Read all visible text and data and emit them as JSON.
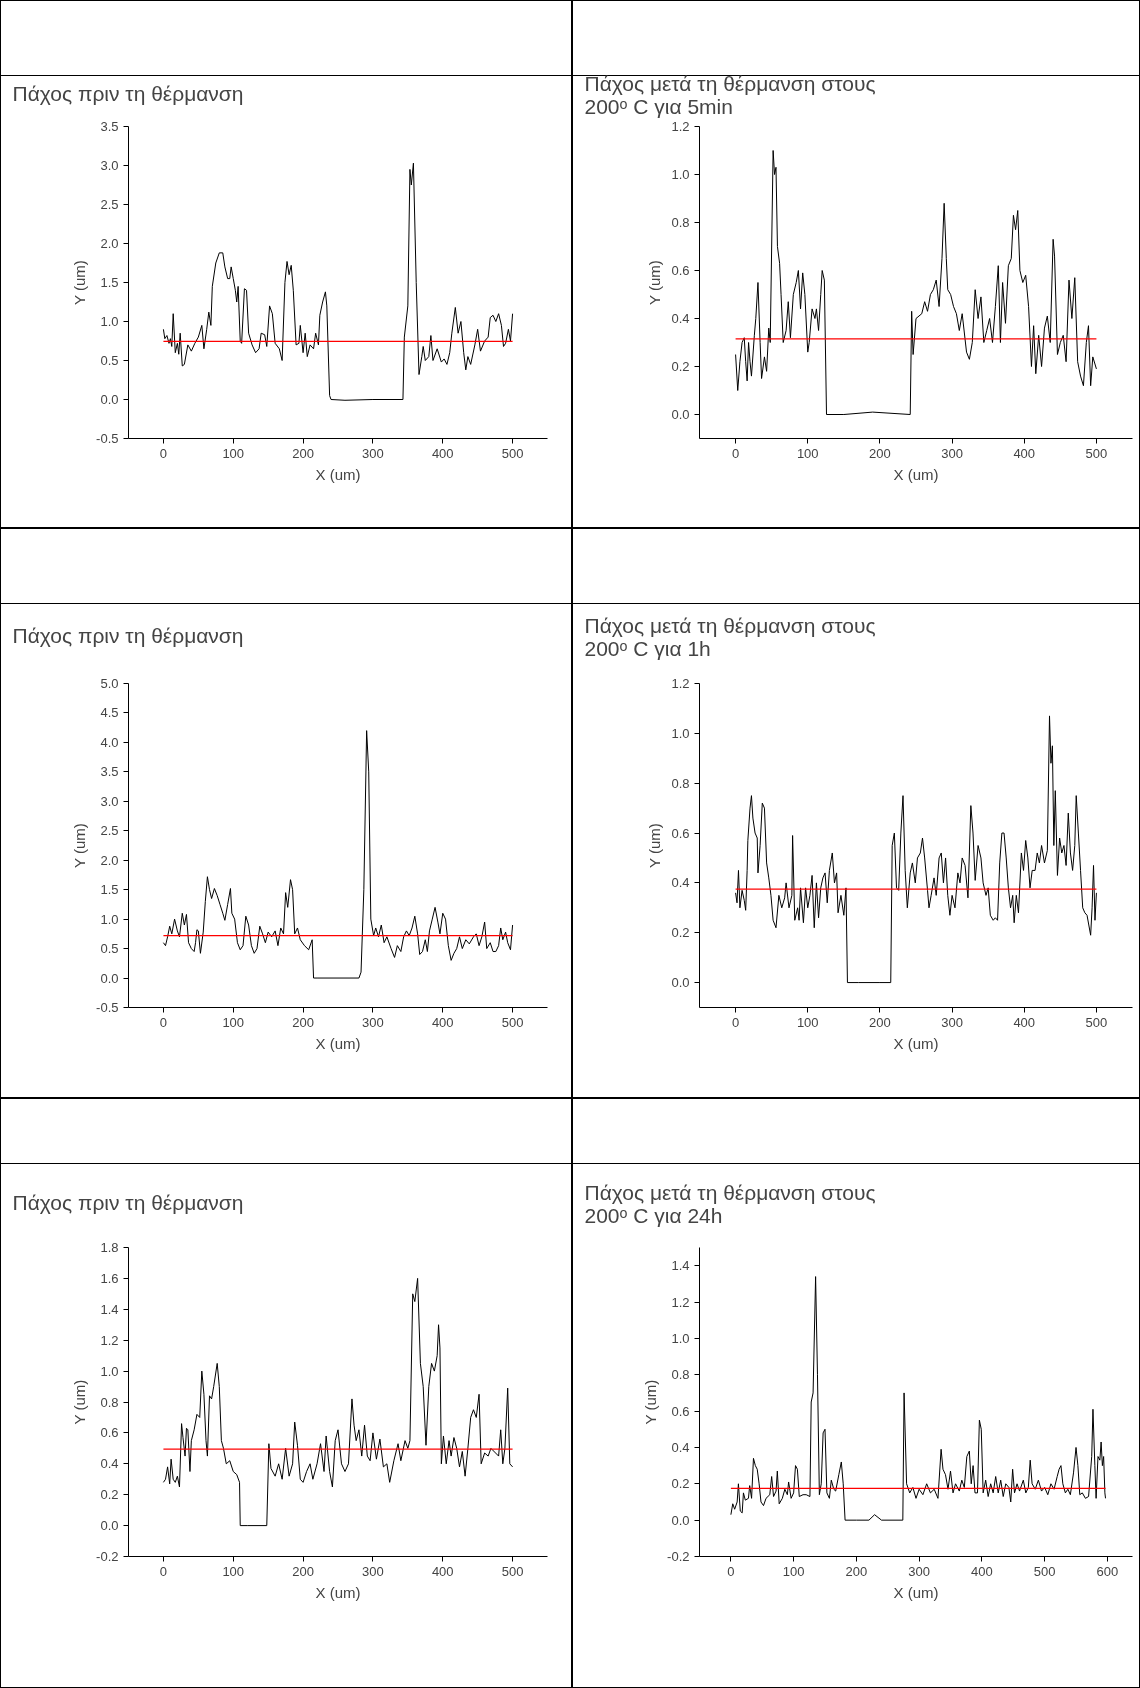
{
  "chart_data": [
    {
      "type": "line",
      "title": "Πάχος πριν τη θέρμανση",
      "xlabel": "X (um)",
      "ylabel": "Y (um)",
      "grid": false,
      "xlim": [
        -50,
        550
      ],
      "xticks": [
        0,
        100,
        200,
        300,
        400,
        500
      ],
      "ylim": [
        -0.5,
        3.5
      ],
      "yticks": [
        -0.5,
        {
          "value": 0,
          "label": "0.0"
        },
        0.5,
        {
          "value": 1,
          "label": "1.0"
        },
        1.5,
        {
          "value": 2,
          "label": "2.0"
        },
        2.5,
        {
          "value": 3,
          "label": "3.0"
        },
        3.5
      ],
      "ref_lines": [
        {
          "axis": "y",
          "value": 0.745,
          "color": "#ff0000"
        }
      ],
      "series": [
        {
          "color": "#000000",
          "x": [
            0,
            2,
            5,
            8,
            10,
            12,
            14,
            17,
            20,
            22,
            24,
            27,
            30,
            35,
            40,
            45,
            50,
            55,
            58,
            62,
            65,
            68,
            70,
            75,
            80,
            85,
            88,
            92,
            95,
            97,
            100,
            103,
            105,
            107,
            110,
            112,
            116,
            119,
            122,
            127,
            132,
            137,
            140,
            145,
            148,
            152,
            156,
            160,
            166,
            170,
            174,
            177,
            180,
            183,
            186,
            190,
            194,
            196,
            200,
            203,
            206,
            210,
            215,
            218,
            222,
            224,
            228,
            232,
            234,
            238,
            240,
            260,
            300,
            343,
            345,
            350,
            353,
            355,
            358,
            362,
            366,
            370,
            372,
            375,
            380,
            383,
            386,
            392,
            398,
            402,
            406,
            410,
            413,
            418,
            422,
            426,
            430,
            433,
            436,
            440,
            446,
            450,
            454,
            460,
            465,
            468,
            472,
            476,
            480,
            484,
            487,
            490,
            494,
            497,
            500
          ],
          "values": [
            0.9,
            0.78,
            0.82,
            0.72,
            0.78,
            0.68,
            1.1,
            0.6,
            0.72,
            0.58,
            0.85,
            0.43,
            0.45,
            0.7,
            0.62,
            0.72,
            0.8,
            0.95,
            0.65,
            0.9,
            1.12,
            0.95,
            1.45,
            1.75,
            1.88,
            1.88,
            1.7,
            1.55,
            1.55,
            1.7,
            1.55,
            1.4,
            1.25,
            1.45,
            0.75,
            0.72,
            1.42,
            1.4,
            0.85,
            0.7,
            0.6,
            0.65,
            0.85,
            0.83,
            0.68,
            1.2,
            1.1,
            0.72,
            0.65,
            0.5,
            1.5,
            1.77,
            1.6,
            1.72,
            1.4,
            0.7,
            0.72,
            0.95,
            0.6,
            0.85,
            0.55,
            0.7,
            0.65,
            0.85,
            0.7,
            1.08,
            1.25,
            1.38,
            1.2,
            0.05,
            0,
            -0.01,
            0,
            0,
            0.8,
            1.2,
            2.95,
            2.75,
            3.03,
            1.5,
            0.32,
            0.55,
            0.68,
            0.5,
            0.55,
            0.82,
            0.5,
            0.65,
            0.48,
            0.52,
            0.45,
            0.6,
            0.85,
            1.18,
            0.85,
            1.0,
            0.6,
            0.38,
            0.55,
            0.45,
            0.7,
            0.9,
            0.62,
            0.75,
            0.8,
            1.05,
            1.08,
            1.0,
            1.1,
            0.95,
            0.68,
            0.72,
            0.9,
            0.75,
            1.1
          ]
        }
      ]
    },
    {
      "type": "line",
      "title": "Πάχος μετά τη θέρμανση στους\n200ᵒ C για 5min",
      "xlabel": "X (um)",
      "ylabel": "Y (um)",
      "grid": false,
      "xlim": [
        -50,
        550
      ],
      "xticks": [
        0,
        100,
        200,
        300,
        400,
        500
      ],
      "ylim": [
        -0.1,
        1.2
      ],
      "yticks": [
        {
          "value": 0,
          "label": "0.0"
        },
        0.2,
        0.4,
        0.6,
        0.8,
        {
          "value": 1,
          "label": "1.0"
        },
        1.2
      ],
      "ref_lines": [
        {
          "axis": "y",
          "value": 0.315,
          "color": "#ff0000"
        }
      ],
      "series": [
        {
          "color": "#000000",
          "x": [
            0,
            3,
            6,
            9,
            12,
            14,
            16,
            18,
            20,
            22,
            26,
            28,
            31,
            34,
            36,
            40,
            43,
            46,
            48,
            52,
            54,
            56,
            58,
            61,
            63,
            66,
            70,
            73,
            76,
            80,
            84,
            87,
            90,
            93,
            96,
            100,
            102,
            106,
            110,
            112,
            115,
            118,
            120,
            123,
            126,
            150,
            190,
            242,
            244,
            246,
            250,
            258,
            262,
            266,
            270,
            274,
            278,
            282,
            286,
            289,
            292,
            294,
            298,
            302,
            306,
            310,
            314,
            320,
            324,
            328,
            332,
            336,
            340,
            344,
            348,
            352,
            356,
            360,
            364,
            367,
            370,
            374,
            378,
            382,
            385,
            388,
            391,
            394,
            398,
            402,
            406,
            410,
            413,
            416,
            420,
            424,
            428,
            432,
            436,
            440,
            442,
            446,
            450,
            454,
            458,
            462,
            466,
            470,
            474,
            478,
            482,
            486,
            489,
            492,
            495,
            500
          ],
          "values": [
            0.25,
            0.1,
            0.22,
            0.3,
            0.32,
            0.22,
            0.14,
            0.3,
            0.22,
            0.16,
            0.33,
            0.4,
            0.55,
            0.3,
            0.15,
            0.24,
            0.18,
            0.36,
            0.3,
            1.1,
            1.0,
            1.03,
            0.7,
            0.63,
            0.5,
            0.3,
            0.35,
            0.47,
            0.32,
            0.5,
            0.55,
            0.6,
            0.44,
            0.59,
            0.5,
            0.26,
            0.3,
            0.44,
            0.4,
            0.44,
            0.35,
            0.5,
            0.6,
            0.56,
            0.0,
            0.0,
            0.01,
            0.0,
            0.43,
            0.25,
            0.4,
            0.42,
            0.47,
            0.43,
            0.5,
            0.52,
            0.56,
            0.45,
            0.65,
            0.88,
            0.65,
            0.52,
            0.5,
            0.45,
            0.42,
            0.35,
            0.42,
            0.26,
            0.23,
            0.3,
            0.52,
            0.4,
            0.49,
            0.3,
            0.35,
            0.4,
            0.3,
            0.45,
            0.62,
            0.3,
            0.55,
            0.38,
            0.62,
            0.65,
            0.83,
            0.77,
            0.85,
            0.6,
            0.55,
            0.58,
            0.45,
            0.2,
            0.37,
            0.17,
            0.33,
            0.2,
            0.36,
            0.41,
            0.3,
            0.73,
            0.66,
            0.25,
            0.3,
            0.33,
            0.22,
            0.56,
            0.4,
            0.57,
            0.22,
            0.16,
            0.12,
            0.3,
            0.37,
            0.12,
            0.24,
            0.19
          ]
        }
      ]
    },
    {
      "type": "line",
      "title": "Πάχος πριν τη θέρμανση",
      "xlabel": "X (um)",
      "ylabel": "Y (um)",
      "grid": false,
      "xlim": [
        -50,
        550
      ],
      "xticks": [
        0,
        100,
        200,
        300,
        400,
        500
      ],
      "ylim": [
        -0.5,
        5.0
      ],
      "yticks": [
        -0.5,
        {
          "value": 0,
          "label": "0.0"
        },
        0.5,
        {
          "value": 1,
          "label": "1.0"
        },
        1.5,
        {
          "value": 2,
          "label": "2.0"
        },
        2.5,
        {
          "value": 3,
          "label": "3.0"
        },
        3.5,
        {
          "value": 4,
          "label": "4.0"
        },
        4.5,
        {
          "value": 5,
          "label": "5.0"
        }
      ],
      "ref_lines": [
        {
          "axis": "y",
          "value": 0.72,
          "color": "#ff0000"
        }
      ],
      "series": [
        {
          "color": "#000000",
          "x": [
            0,
            3,
            6,
            9,
            12,
            16,
            20,
            23,
            27,
            30,
            33,
            36,
            40,
            44,
            46,
            48,
            50,
            53,
            57,
            60,
            63,
            66,
            69,
            73,
            77,
            81,
            85,
            88,
            92,
            96,
            98,
            102,
            106,
            110,
            114,
            118,
            122,
            126,
            130,
            134,
            138,
            142,
            146,
            150,
            155,
            160,
            164,
            168,
            172,
            175,
            178,
            182,
            185,
            188,
            192,
            196,
            202,
            208,
            213,
            215,
            220,
            250,
            280,
            283,
            287,
            291,
            294,
            297,
            301,
            304,
            308,
            312,
            316,
            320,
            326,
            331,
            335,
            340,
            344,
            348,
            352,
            356,
            360,
            364,
            367,
            371,
            375,
            378,
            381,
            385,
            389,
            393,
            396,
            400,
            404,
            408,
            412,
            416,
            420,
            424,
            428,
            433,
            438,
            444,
            448,
            452,
            456,
            460,
            463,
            468,
            472,
            476,
            480,
            483,
            486,
            490,
            493,
            497,
            500
          ],
          "values": [
            0.6,
            0.55,
            0.7,
            0.88,
            0.75,
            1.0,
            0.8,
            0.7,
            1.1,
            0.9,
            1.08,
            0.6,
            0.5,
            0.45,
            0.6,
            0.82,
            0.8,
            0.42,
            0.78,
            1.3,
            1.72,
            1.5,
            1.35,
            1.52,
            1.4,
            1.25,
            1.1,
            0.98,
            1.25,
            1.52,
            1.1,
            1.0,
            0.6,
            0.48,
            0.55,
            1.05,
            0.9,
            0.55,
            0.42,
            0.5,
            0.88,
            0.75,
            0.6,
            0.78,
            0.7,
            0.8,
            0.55,
            0.85,
            0.75,
            1.45,
            1.2,
            1.67,
            1.5,
            0.75,
            0.85,
            0.65,
            0.55,
            0.48,
            0.65,
            0.0,
            0,
            0,
            0,
            0.1,
            1.5,
            4.2,
            3.5,
            1.0,
            0.72,
            0.85,
            0.7,
            0.9,
            0.6,
            0.7,
            0.5,
            0.35,
            0.55,
            0.45,
            0.7,
            0.8,
            0.72,
            0.85,
            1.05,
            0.75,
            0.4,
            0.45,
            0.65,
            0.45,
            0.8,
            1.0,
            1.2,
            0.95,
            0.75,
            1.1,
            1.0,
            0.55,
            0.3,
            0.42,
            0.5,
            0.7,
            0.5,
            0.65,
            0.58,
            0.7,
            0.75,
            0.55,
            0.7,
            0.95,
            0.5,
            0.6,
            0.45,
            0.45,
            0.55,
            0.85,
            0.65,
            0.78,
            0.6,
            0.48,
            0.9
          ]
        }
      ]
    },
    {
      "type": "line",
      "title": "Πάχος μετά τη θέρμανση στους\n200ᵒ C για 1h",
      "xlabel": "X (um)",
      "ylabel": "Y (um)",
      "grid": false,
      "xlim": [
        -50,
        550
      ],
      "xticks": [
        0,
        100,
        200,
        300,
        400,
        500
      ],
      "ylim": [
        -0.1,
        1.2
      ],
      "yticks": [
        {
          "value": 0,
          "label": "0.0"
        },
        0.2,
        0.4,
        0.6,
        0.8,
        {
          "value": 1,
          "label": "1.0"
        },
        1.2
      ],
      "ref_lines": [
        {
          "axis": "y",
          "value": 0.375,
          "color": "#ff0000"
        }
      ],
      "series": [
        {
          "color": "#000000",
          "x": [
            0,
            2,
            4,
            6,
            9,
            12,
            14,
            16,
            17,
            20,
            22,
            24,
            27,
            30,
            31,
            34,
            37,
            40,
            43,
            46,
            49,
            52,
            56,
            60,
            64,
            68,
            70,
            74,
            78,
            79,
            82,
            86,
            88,
            90,
            94,
            97,
            100,
            103,
            106,
            109,
            112,
            115,
            118,
            121,
            124,
            127,
            130,
            134,
            137,
            140,
            142,
            146,
            150,
            153,
            155,
            170,
            200,
            215,
            217,
            220,
            223,
            226,
            229,
            232,
            235,
            238,
            242,
            245,
            249,
            252,
            256,
            259,
            262,
            266,
            268,
            271,
            275,
            278,
            282,
            285,
            288,
            291,
            294,
            297,
            300,
            304,
            308,
            311,
            314,
            318,
            322,
            326,
            329,
            332,
            336,
            340,
            343,
            347,
            350,
            353,
            357,
            360,
            363,
            366,
            369,
            372,
            375,
            378,
            381,
            384,
            386,
            389,
            392,
            396,
            399,
            402,
            405,
            408,
            411,
            415,
            418,
            421,
            424,
            428,
            432,
            435,
            437,
            439,
            441,
            443,
            446,
            449,
            452,
            455,
            458,
            461,
            464,
            467,
            470,
            472,
            475,
            478,
            481,
            484,
            487,
            492,
            494,
            496,
            498,
            500
          ],
          "values": [
            0.36,
            0.32,
            0.45,
            0.3,
            0.37,
            0.33,
            0.29,
            0.45,
            0.57,
            0.7,
            0.75,
            0.66,
            0.6,
            0.58,
            0.44,
            0.55,
            0.72,
            0.7,
            0.48,
            0.42,
            0.35,
            0.25,
            0.22,
            0.35,
            0.3,
            0.34,
            0.4,
            0.3,
            0.35,
            0.59,
            0.25,
            0.3,
            0.25,
            0.38,
            0.24,
            0.38,
            0.3,
            0.35,
            0.43,
            0.22,
            0.4,
            0.26,
            0.38,
            0.42,
            0.44,
            0.32,
            0.45,
            0.52,
            0.4,
            0.44,
            0.28,
            0.35,
            0.27,
            0.38,
            0.0,
            0.0,
            0.0,
            0.0,
            0.55,
            0.6,
            0.38,
            0.37,
            0.6,
            0.75,
            0.45,
            0.3,
            0.44,
            0.48,
            0.4,
            0.5,
            0.52,
            0.58,
            0.5,
            0.37,
            0.3,
            0.35,
            0.42,
            0.35,
            0.5,
            0.52,
            0.4,
            0.5,
            0.35,
            0.27,
            0.35,
            0.3,
            0.44,
            0.4,
            0.5,
            0.47,
            0.34,
            0.71,
            0.6,
            0.41,
            0.55,
            0.5,
            0.4,
            0.35,
            0.38,
            0.27,
            0.25,
            0.26,
            0.25,
            0.48,
            0.6,
            0.6,
            0.5,
            0.38,
            0.3,
            0.35,
            0.24,
            0.35,
            0.28,
            0.52,
            0.45,
            0.57,
            0.5,
            0.38,
            0.45,
            0.45,
            0.52,
            0.48,
            0.55,
            0.48,
            0.53,
            1.07,
            0.88,
            0.95,
            0.55,
            0.77,
            0.43,
            0.58,
            0.52,
            0.55,
            0.47,
            0.68,
            0.52,
            0.45,
            0.55,
            0.75,
            0.6,
            0.45,
            0.3,
            0.28,
            0.27,
            0.19,
            0.3,
            0.47,
            0.25,
            0.36
          ]
        }
      ]
    },
    {
      "type": "line",
      "title": "Πάχος πριν τη θέρμανση",
      "xlabel": "X (um)",
      "ylabel": "Y (um)",
      "grid": false,
      "xlim": [
        -50,
        550
      ],
      "xticks": [
        0,
        100,
        200,
        300,
        400,
        500
      ],
      "ylim": [
        -0.2,
        1.8
      ],
      "yticks": [
        -0.2,
        {
          "value": 0,
          "label": "0.0"
        },
        0.2,
        0.4,
        0.6,
        0.8,
        {
          "value": 1,
          "label": "1.0"
        },
        1.2,
        1.4,
        1.6,
        1.8
      ],
      "ref_lines": [
        {
          "axis": "y",
          "value": 0.495,
          "color": "#ff0000"
        }
      ],
      "series": [
        {
          "color": "#000000",
          "x": [
            0,
            3,
            6,
            9,
            11,
            14,
            17,
            20,
            23,
            26,
            28,
            31,
            33,
            35,
            38,
            40,
            44,
            48,
            52,
            55,
            58,
            61,
            63,
            66,
            69,
            72,
            77,
            80,
            83,
            86,
            90,
            95,
            100,
            105,
            109,
            110,
            120,
            148,
            151,
            154,
            160,
            165,
            170,
            175,
            180,
            185,
            188,
            192,
            196,
            200,
            205,
            210,
            214,
            220,
            225,
            230,
            233,
            238,
            242,
            246,
            250,
            255,
            260,
            265,
            270,
            273,
            276,
            280,
            284,
            288,
            292,
            296,
            300,
            305,
            310,
            315,
            320,
            324,
            330,
            336,
            340,
            346,
            350,
            353,
            357,
            360,
            364,
            368,
            372,
            376,
            380,
            384,
            388,
            392,
            394,
            396,
            398,
            401,
            405,
            409,
            412,
            416,
            420,
            424,
            428,
            432,
            436,
            440,
            444,
            448,
            452,
            455,
            460,
            465,
            469,
            480,
            483,
            486,
            489,
            493,
            496,
            500
          ],
          "values": [
            0.28,
            0.3,
            0.38,
            0.27,
            0.43,
            0.3,
            0.28,
            0.32,
            0.25,
            0.66,
            0.57,
            0.45,
            0.63,
            0.62,
            0.35,
            0.55,
            0.62,
            0.72,
            0.7,
            1.0,
            0.85,
            0.55,
            0.45,
            0.84,
            0.82,
            0.9,
            1.05,
            0.9,
            0.55,
            0.5,
            0.4,
            0.42,
            0.35,
            0.33,
            0.28,
            0.0,
            0.0,
            0.0,
            0.53,
            0.37,
            0.32,
            0.4,
            0.3,
            0.5,
            0.32,
            0.4,
            0.67,
            0.52,
            0.3,
            0.28,
            0.35,
            0.4,
            0.3,
            0.4,
            0.53,
            0.35,
            0.58,
            0.35,
            0.25,
            0.55,
            0.62,
            0.4,
            0.35,
            0.4,
            0.82,
            0.65,
            0.55,
            0.62,
            0.45,
            0.65,
            0.45,
            0.42,
            0.6,
            0.43,
            0.56,
            0.38,
            0.4,
            0.28,
            0.42,
            0.53,
            0.42,
            0.55,
            0.5,
            0.55,
            1.5,
            1.45,
            1.6,
            1.05,
            0.9,
            0.52,
            0.9,
            1.05,
            1.0,
            1.1,
            1.3,
            1.15,
            0.4,
            0.58,
            0.4,
            0.55,
            0.45,
            0.57,
            0.5,
            0.38,
            0.48,
            0.32,
            0.5,
            0.7,
            0.75,
            0.7,
            0.85,
            0.4,
            0.47,
            0.45,
            0.5,
            0.45,
            0.62,
            0.4,
            0.5,
            0.89,
            0.4,
            0.38
          ]
        }
      ]
    },
    {
      "type": "line",
      "title": "Πάχος μετά τη θέρμανση στους\n200ᵒ C για 24h",
      "xlabel": "X (um)",
      "ylabel": "Y (um)",
      "grid": false,
      "xlim": [
        -50,
        640
      ],
      "xticks": [
        0,
        100,
        200,
        300,
        400,
        500,
        600
      ],
      "ylim": [
        -0.2,
        1.5
      ],
      "yticks": [
        -0.2,
        {
          "value": 0,
          "label": "0.0"
        },
        0.2,
        0.4,
        0.6,
        0.8,
        {
          "value": 1,
          "label": "1.0"
        },
        1.2,
        1.4
      ],
      "ref_lines": [
        {
          "axis": "y",
          "value": 0.175,
          "color": "#ff0000"
        }
      ],
      "series": [
        {
          "color": "#000000",
          "x": [
            0,
            3,
            6,
            10,
            12,
            15,
            18,
            20,
            23,
            28,
            30,
            33,
            36,
            39,
            42,
            45,
            48,
            52,
            56,
            62,
            65,
            68,
            72,
            74,
            77,
            82,
            86,
            90,
            92,
            96,
            100,
            103,
            106,
            109,
            115,
            120,
            126,
            128,
            131,
            135,
            138,
            141,
            144,
            147,
            150,
            153,
            157,
            160,
            164,
            167,
            172,
            176,
            179,
            182,
            200,
            220,
            229,
            240,
            274,
            276,
            280,
            285,
            290,
            295,
            300,
            306,
            312,
            318,
            324,
            330,
            335,
            338,
            342,
            346,
            350,
            354,
            358,
            364,
            368,
            372,
            376,
            380,
            383,
            386,
            389,
            393,
            396,
            399,
            402,
            406,
            410,
            414,
            418,
            422,
            426,
            430,
            434,
            438,
            443,
            446,
            449,
            452,
            456,
            460,
            466,
            470,
            474,
            477,
            480,
            485,
            490,
            495,
            500,
            505,
            510,
            515,
            520,
            523,
            526,
            529,
            533,
            537,
            541,
            546,
            550,
            553,
            556,
            560,
            565,
            570,
            575,
            577,
            580,
            582,
            585,
            588,
            590,
            592,
            594,
            596,
            597
          ],
          "values": [
            0.03,
            0.09,
            0.06,
            0.1,
            0.2,
            0.05,
            0.04,
            0.15,
            0.11,
            0.12,
            0.19,
            0.12,
            0.34,
            0.3,
            0.28,
            0.2,
            0.1,
            0.08,
            0.12,
            0.14,
            0.24,
            0.13,
            0.16,
            0.27,
            0.09,
            0.12,
            0.17,
            0.14,
            0.21,
            0.12,
            0.15,
            0.3,
            0.28,
            0.13,
            0.14,
            0.14,
            0.13,
            0.65,
            0.7,
            1.34,
            0.8,
            0.14,
            0.2,
            0.48,
            0.5,
            0.15,
            0.12,
            0.22,
            0.17,
            0.16,
            0.25,
            0.32,
            0.2,
            0.0,
            0.0,
            0.0,
            0.03,
            0.0,
            0.0,
            0.7,
            0.2,
            0.15,
            0.18,
            0.12,
            0.17,
            0.14,
            0.2,
            0.15,
            0.17,
            0.12,
            0.39,
            0.28,
            0.25,
            0.17,
            0.27,
            0.15,
            0.2,
            0.16,
            0.22,
            0.18,
            0.35,
            0.38,
            0.2,
            0.3,
            0.15,
            0.15,
            0.55,
            0.5,
            0.15,
            0.22,
            0.13,
            0.2,
            0.15,
            0.24,
            0.15,
            0.22,
            0.13,
            0.2,
            0.18,
            0.1,
            0.28,
            0.15,
            0.2,
            0.16,
            0.22,
            0.15,
            0.18,
            0.33,
            0.2,
            0.17,
            0.22,
            0.16,
            0.18,
            0.14,
            0.2,
            0.17,
            0.24,
            0.28,
            0.3,
            0.2,
            0.15,
            0.17,
            0.14,
            0.26,
            0.4,
            0.3,
            0.14,
            0.15,
            0.12,
            0.13,
            0.35,
            0.61,
            0.3,
            0.12,
            0.35,
            0.33,
            0.43,
            0.3,
            0.35,
            0.15,
            0.12
          ]
        }
      ]
    }
  ]
}
